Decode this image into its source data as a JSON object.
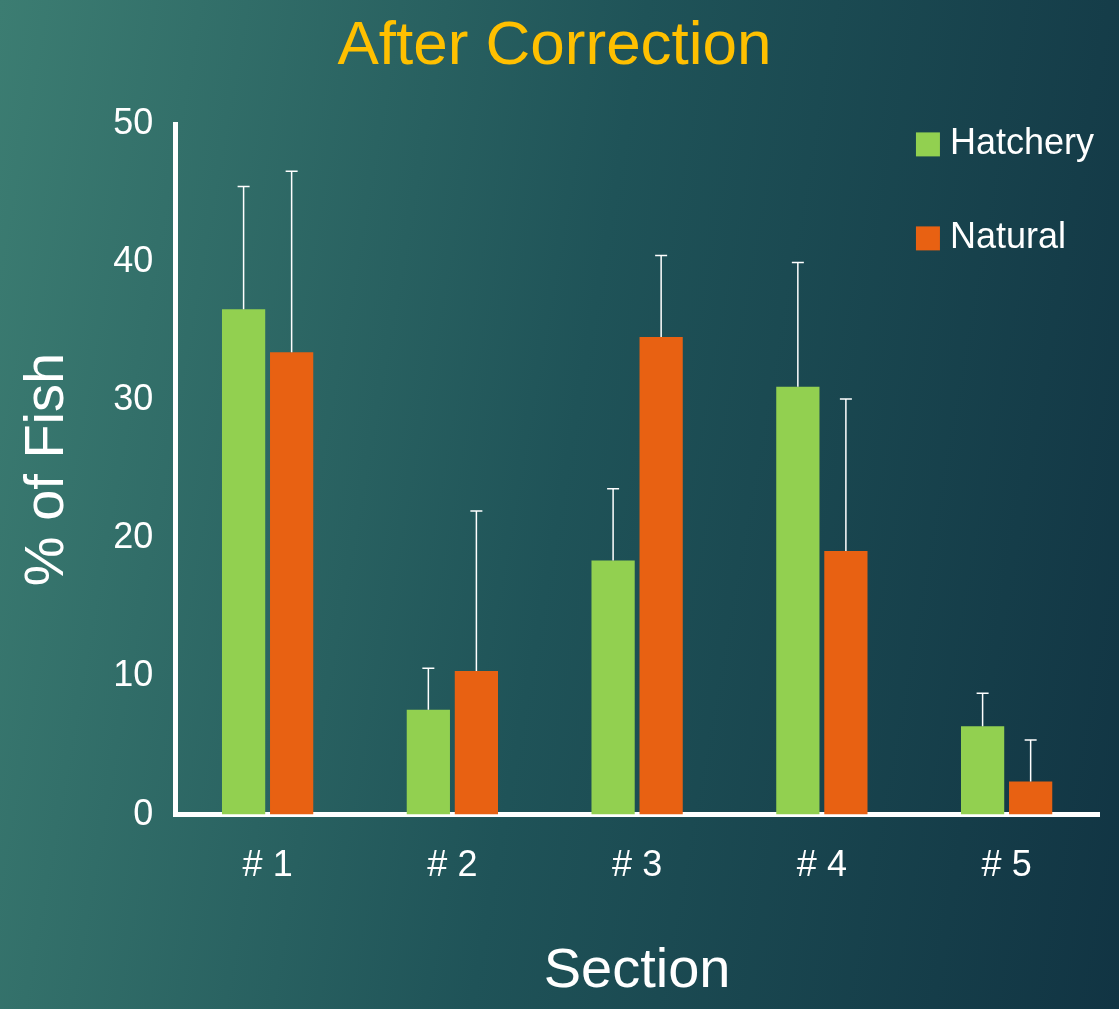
{
  "chart_data": {
    "type": "bar",
    "title": "After Correction",
    "xlabel": "Section",
    "ylabel": "% of Fish",
    "categories": [
      "# 1",
      "# 2",
      "# 3",
      "# 4",
      "# 5"
    ],
    "series": [
      {
        "name": "Hatchery",
        "color": "#92d050",
        "values": [
          36.6,
          7.6,
          18.4,
          31.0,
          6.4
        ],
        "errors": [
          [
            36.6,
            45.5
          ],
          [
            7.6,
            10.6
          ],
          [
            18.4,
            23.6
          ],
          [
            31.0,
            40.0
          ],
          [
            6.4,
            8.8
          ]
        ]
      },
      {
        "name": "Natural",
        "color": "#e86112",
        "values": [
          33.5,
          10.4,
          34.6,
          19.1,
          2.4
        ],
        "errors": [
          [
            33.5,
            46.6
          ],
          [
            10.4,
            22.0
          ],
          [
            34.6,
            40.5
          ],
          [
            19.1,
            30.1
          ],
          [
            2.4,
            5.4
          ]
        ]
      }
    ],
    "ylim": [
      0,
      50
    ],
    "yticks": [
      0,
      10,
      20,
      30,
      40,
      50
    ],
    "grid": false,
    "legend": "top right"
  }
}
